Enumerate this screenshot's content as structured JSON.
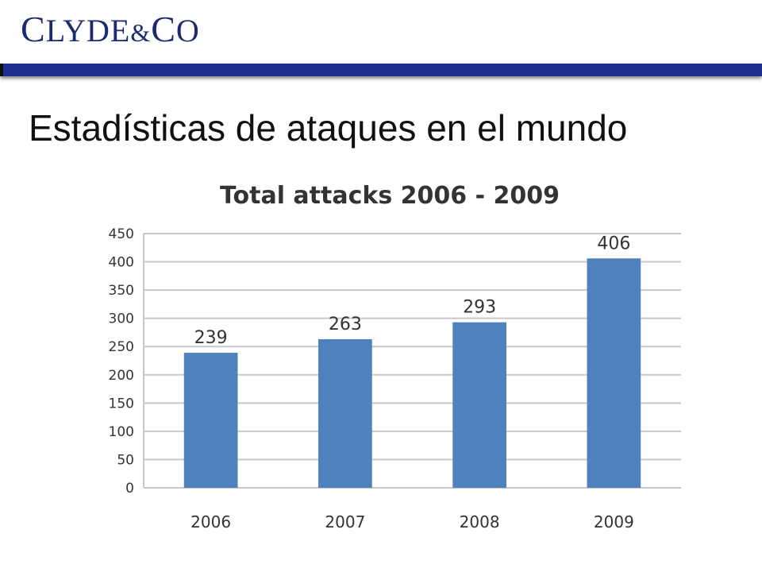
{
  "brand": {
    "logo_parts": [
      "C",
      "LYDE",
      "&",
      "C",
      "O"
    ],
    "color": "#1e2a6e",
    "bar_color": "#1f2d8c"
  },
  "slide": {
    "title": "Estadísticas de ataques en el mundo"
  },
  "chart_data": {
    "type": "bar",
    "title": "Total attacks 2006 - 2009",
    "xlabel": "",
    "ylabel": "",
    "categories": [
      "2006",
      "2007",
      "2008",
      "2009"
    ],
    "values": [
      239,
      263,
      293,
      406
    ],
    "data_labels": [
      "239",
      "263",
      "293",
      "406"
    ],
    "ylim": [
      0,
      450
    ],
    "yticks": [
      0,
      50,
      100,
      150,
      200,
      250,
      300,
      350,
      400,
      450
    ],
    "grid": true,
    "legend": "none",
    "bar_color": "#4f81bd",
    "grid_color": "#c8c8c8"
  }
}
